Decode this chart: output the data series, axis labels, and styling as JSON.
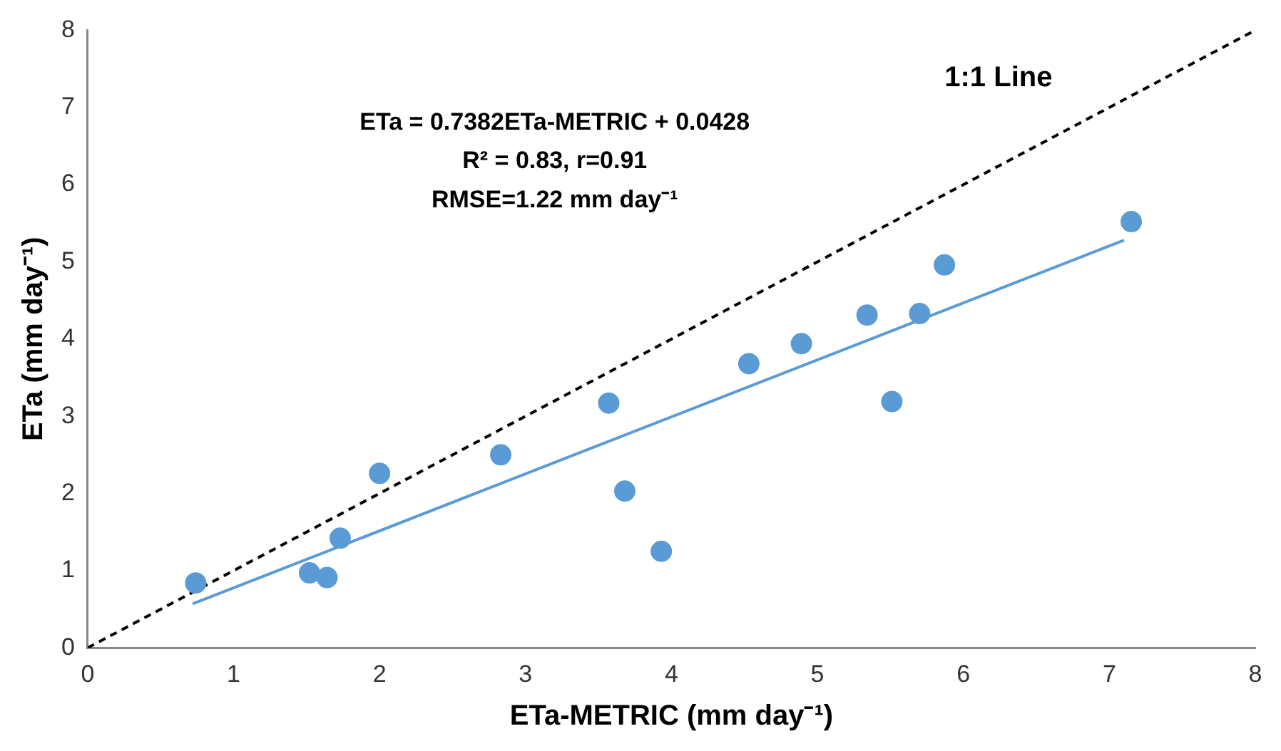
{
  "chart_data": {
    "type": "scatter",
    "xlabel": "ETa-METRIC (mm day⁻¹)",
    "ylabel": "ETa (mm day⁻¹)",
    "xlim": [
      0,
      8
    ],
    "xticks": [
      0,
      1,
      2,
      3,
      4,
      5,
      6,
      7,
      8
    ],
    "ylim": [
      0,
      8
    ],
    "yticks": [
      0,
      1,
      2,
      3,
      4,
      5,
      6,
      7,
      8
    ],
    "grid": false,
    "legend": false,
    "annotations": [
      "1:1 Line",
      "ETa = 0.7382ETa-METRIC + 0.0428",
      "R² = 0.83, r=0.91",
      "RMSE=1.22 mm day⁻¹"
    ],
    "series": [
      {
        "type": "scatter",
        "marker": "circle",
        "color": "#5b9bd5",
        "x": [
          0.74,
          1.52,
          1.64,
          1.73,
          2.0,
          2.83,
          3.57,
          3.68,
          3.93,
          4.53,
          4.89,
          5.34,
          5.51,
          5.7,
          5.87,
          7.15
        ],
        "values": [
          0.84,
          0.97,
          0.91,
          1.42,
          2.26,
          2.5,
          3.17,
          2.03,
          1.25,
          3.68,
          3.94,
          4.31,
          3.19,
          4.33,
          4.96,
          5.52
        ]
      },
      {
        "type": "line",
        "marker": "none",
        "color": "#5b9bd5",
        "line_style": "solid",
        "x": [
          0.72,
          7.1
        ],
        "values": [
          0.57,
          5.28
        ]
      },
      {
        "type": "line",
        "marker": "none",
        "color": "#000000",
        "line_style": "dashed",
        "x": [
          0,
          8
        ],
        "values": [
          0,
          8
        ]
      }
    ]
  }
}
